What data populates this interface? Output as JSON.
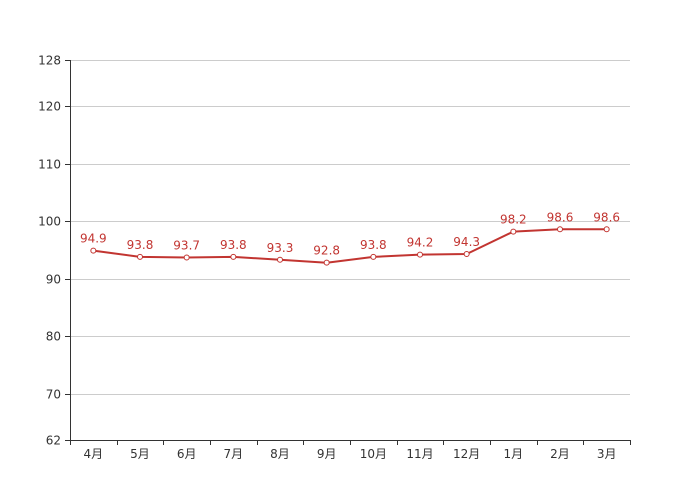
{
  "chart_data": {
    "type": "line",
    "categories": [
      "4月",
      "5月",
      "6月",
      "7月",
      "8月",
      "9月",
      "10月",
      "11月",
      "12月",
      "1月",
      "2月",
      "3月"
    ],
    "series": [
      {
        "values": [
          94.9,
          93.8,
          93.7,
          93.8,
          93.3,
          92.8,
          93.8,
          94.2,
          94.3,
          98.2,
          98.6,
          98.6
        ]
      }
    ],
    "ylim": [
      62,
      128
    ],
    "yticks": [
      62,
      70,
      80,
      90,
      100,
      110,
      120,
      128
    ],
    "grid": true,
    "colors": {
      "line": "#c23531",
      "grid": "#cccccc",
      "axis": "#333333"
    }
  }
}
